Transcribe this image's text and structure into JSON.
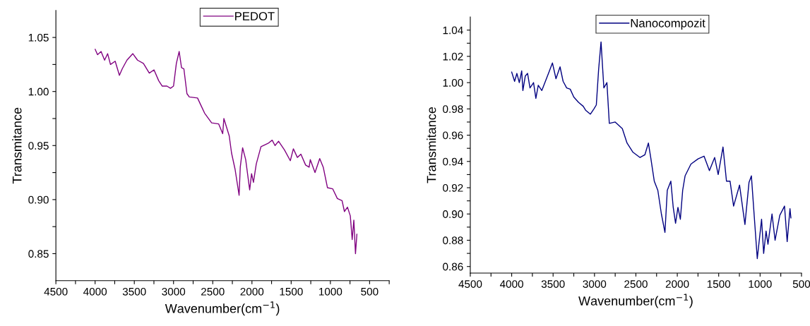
{
  "chart_data": [
    {
      "type": "line",
      "xlabel": "Wavenumber(cm$^{−1}$)",
      "ylabel": "Transmitance",
      "legend": "top",
      "grid": false,
      "xlim": [
        4500,
        250
      ],
      "xticks": [
        4500,
        {
          "value": 4250,
          "label": null
        },
        4000,
        {
          "value": 3750,
          "label": null
        },
        3500,
        {
          "value": 3250,
          "label": null
        },
        3000,
        {
          "value": 2750,
          "label": null
        },
        2500,
        {
          "value": 2250,
          "label": null
        },
        2000,
        {
          "value": 1750,
          "label": null
        },
        1500,
        {
          "value": 1250,
          "label": null
        },
        1000,
        {
          "value": 750,
          "label": null
        },
        500,
        {
          "value": 250,
          "label": null
        }
      ],
      "ylim": [
        0.825,
        1.075
      ],
      "yticks": [
        {
          "value": 0.85,
          "label": "0.85"
        },
        {
          "value": 0.875,
          "label": null
        },
        {
          "value": 0.9,
          "label": "0.90"
        },
        {
          "value": 0.925,
          "label": null
        },
        {
          "value": 0.95,
          "label": "0.95"
        },
        {
          "value": 0.975,
          "label": null
        },
        {
          "value": 1.0,
          "label": "1.00"
        },
        {
          "value": 1.025,
          "label": null
        },
        {
          "value": 1.05,
          "label": "1.05"
        }
      ],
      "series": [
        {
          "name": "PEDOT",
          "color": "#800080",
          "x": [
            3999,
            3969,
            3924,
            3879,
            3840,
            3804,
            3744,
            3690,
            3654,
            3594,
            3519,
            3459,
            3384,
            3309,
            3249,
            3189,
            3144,
            3084,
            3039,
            3000,
            2964,
            2928,
            2898,
            2868,
            2829,
            2799,
            2694,
            2649,
            2604,
            2514,
            2424,
            2373,
            2358,
            2290,
            2260,
            2215,
            2164,
            2149,
            2119,
            2080,
            2029,
            2005,
            1981,
            1945,
            1885,
            1795,
            1742,
            1706,
            1661,
            1586,
            1511,
            1472,
            1421,
            1376,
            1316,
            1271,
            1256,
            1196,
            1136,
            1091,
            1037,
            971,
            911,
            851,
            821,
            782,
            746,
            722,
            701,
            680,
            662
          ],
          "values": [
            1.039,
            1.034,
            1.037,
            1.029,
            1.035,
            1.025,
            1.028,
            1.015,
            1.021,
            1.029,
            1.035,
            1.029,
            1.026,
            1.017,
            1.02,
            1.01,
            1.005,
            1.005,
            1.003,
            1.005,
            1.026,
            1.037,
            1.022,
            1.021,
            0.998,
            0.995,
            0.994,
            0.987,
            0.98,
            0.971,
            0.97,
            0.961,
            0.975,
            0.959,
            0.943,
            0.928,
            0.904,
            0.93,
            0.948,
            0.937,
            0.909,
            0.924,
            0.916,
            0.933,
            0.949,
            0.952,
            0.955,
            0.95,
            0.954,
            0.946,
            0.936,
            0.947,
            0.939,
            0.942,
            0.932,
            0.93,
            0.937,
            0.925,
            0.938,
            0.93,
            0.911,
            0.91,
            0.901,
            0.899,
            0.889,
            0.893,
            0.885,
            0.863,
            0.881,
            0.85,
            0.868
          ]
        }
      ]
    },
    {
      "type": "line",
      "xlabel": "Wavenumber(cm$^{−1}$)",
      "ylabel": "Transmitance",
      "legend": "top",
      "grid": false,
      "xlim": [
        4500,
        500
      ],
      "xticks": [
        4500,
        {
          "value": 4250,
          "label": null
        },
        4000,
        {
          "value": 3750,
          "label": null
        },
        3500,
        {
          "value": 3250,
          "label": null
        },
        3000,
        {
          "value": 2750,
          "label": null
        },
        2500,
        {
          "value": 2250,
          "label": null
        },
        2000,
        {
          "value": 1750,
          "label": null
        },
        1500,
        {
          "value": 1250,
          "label": null
        },
        1000,
        {
          "value": 750,
          "label": null
        },
        500
      ],
      "ylim": [
        0.855,
        1.05
      ],
      "yticks": [
        {
          "value": 0.86,
          "label": "0.86"
        },
        {
          "value": 0.87,
          "label": null
        },
        {
          "value": 0.88,
          "label": "0.88"
        },
        {
          "value": 0.89,
          "label": null
        },
        {
          "value": 0.9,
          "label": "0.90"
        },
        {
          "value": 0.91,
          "label": null
        },
        {
          "value": 0.92,
          "label": "0.92"
        },
        {
          "value": 0.93,
          "label": null
        },
        {
          "value": 0.94,
          "label": "0.94"
        },
        {
          "value": 0.95,
          "label": null
        },
        {
          "value": 0.96,
          "label": "0.96"
        },
        {
          "value": 0.97,
          "label": null
        },
        {
          "value": 0.98,
          "label": "0.98"
        },
        {
          "value": 0.99,
          "label": null
        },
        {
          "value": 1.0,
          "label": "1.00"
        },
        {
          "value": 1.01,
          "label": null
        },
        {
          "value": 1.02,
          "label": "1.02"
        },
        {
          "value": 1.03,
          "label": null
        },
        {
          "value": 1.04,
          "label": "1.04"
        }
      ],
      "series": [
        {
          "name": "Nanocompozit",
          "color": "#000080",
          "x": [
            4000,
            3965,
            3937,
            3908,
            3879,
            3865,
            3836,
            3808,
            3779,
            3736,
            3708,
            3679,
            3636,
            3593,
            3550,
            3508,
            3465,
            3416,
            3379,
            3336,
            3293,
            3250,
            3193,
            3136,
            3107,
            3050,
            3007,
            2978,
            2950,
            2921,
            2887,
            2850,
            2821,
            2750,
            2664,
            2607,
            2535,
            2450,
            2392,
            2349,
            2321,
            2278,
            2235,
            2192,
            2149,
            2121,
            2078,
            2049,
            2021,
            1992,
            1963,
            1935,
            1906,
            1835,
            1749,
            1677,
            1612,
            1549,
            1506,
            1448,
            1406,
            1363,
            1320,
            1248,
            1183,
            1134,
            1105,
            1068,
            1034,
            982,
            957,
            928,
            905,
            856,
            819,
            762,
            705,
            673,
            639,
            628
          ],
          "values": [
            1.008,
            1.001,
            1.007,
            1.0,
            1.009,
            0.994,
            1.005,
            1.007,
            0.996,
            1.0,
            0.988,
            0.998,
            0.994,
            1.001,
            1.008,
            1.015,
            1.003,
            1.012,
            1.001,
            0.996,
            0.995,
            0.989,
            0.985,
            0.982,
            0.979,
            0.976,
            0.98,
            0.983,
            1.01,
            1.031,
            0.996,
            1.0,
            0.969,
            0.97,
            0.965,
            0.954,
            0.947,
            0.943,
            0.945,
            0.954,
            0.943,
            0.925,
            0.918,
            0.9,
            0.886,
            0.918,
            0.925,
            0.905,
            0.893,
            0.905,
            0.896,
            0.918,
            0.929,
            0.938,
            0.942,
            0.944,
            0.933,
            0.943,
            0.93,
            0.951,
            0.925,
            0.925,
            0.906,
            0.922,
            0.892,
            0.924,
            0.929,
            0.896,
            0.866,
            0.896,
            0.87,
            0.887,
            0.877,
            0.9,
            0.88,
            0.899,
            0.906,
            0.879,
            0.904,
            0.897
          ]
        }
      ]
    }
  ]
}
